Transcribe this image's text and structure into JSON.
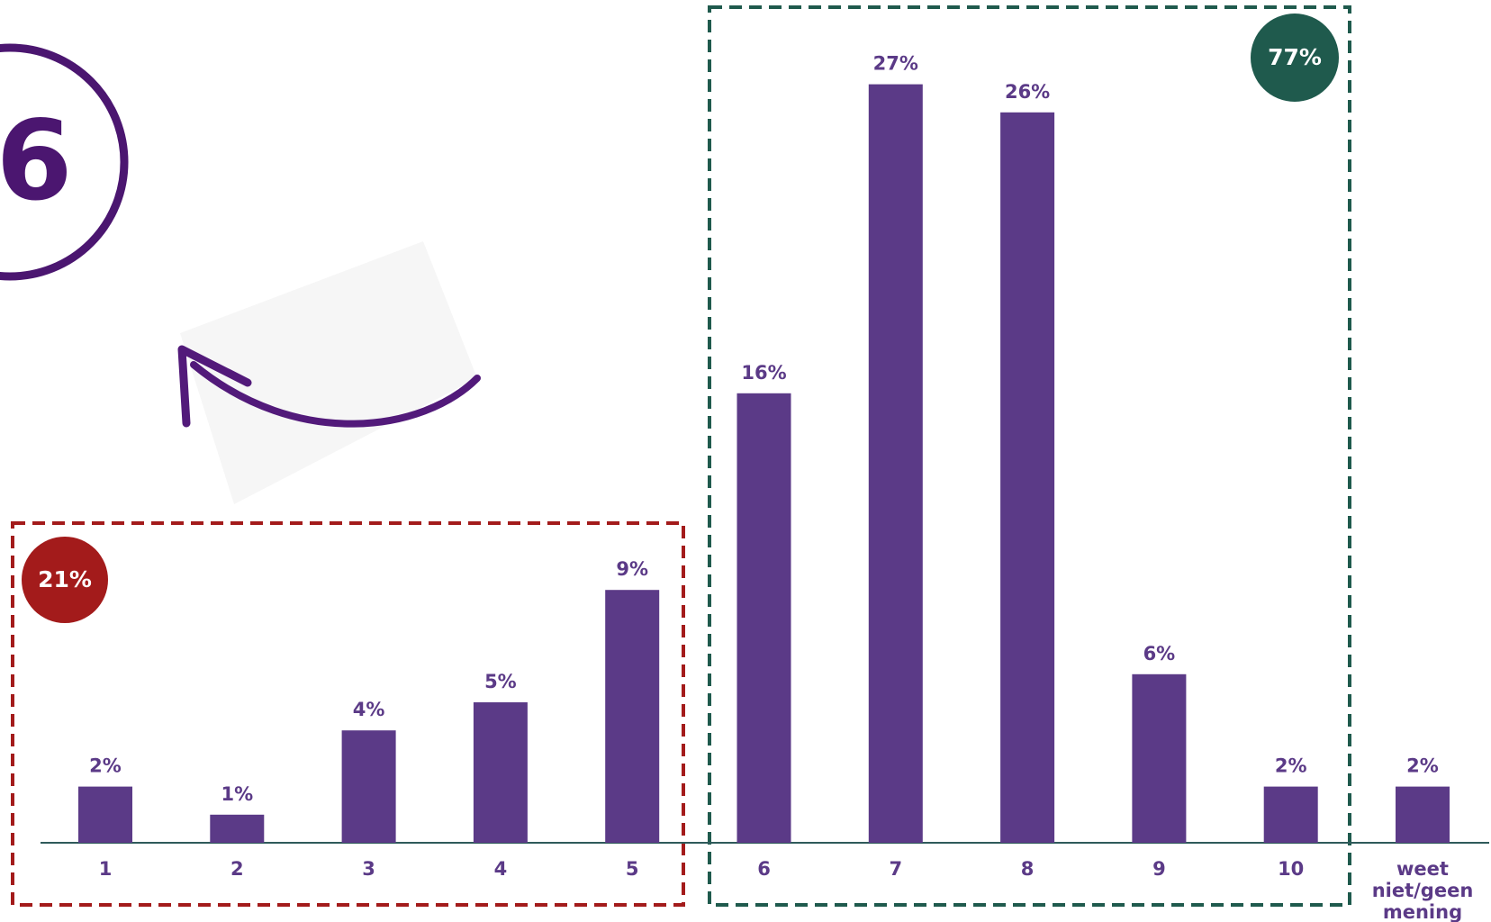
{
  "chart_data": {
    "type": "bar",
    "categories": [
      "1",
      "2",
      "3",
      "4",
      "5",
      "6",
      "7",
      "8",
      "9",
      "10",
      "weet niet/geen mening"
    ],
    "values": [
      2,
      1,
      4,
      5,
      9,
      16,
      27,
      26,
      6,
      2,
      2
    ],
    "value_labels": [
      "2%",
      "1%",
      "4%",
      "5%",
      "9%",
      "16%",
      "27%",
      "26%",
      "6%",
      "2%",
      "2%"
    ],
    "color": "#5b3a87",
    "groups": [
      {
        "label": "21%",
        "color": "#a31b1b"
      },
      {
        "label": "77%",
        "color": "#1f5a4d"
      }
    ],
    "score": "6"
  }
}
